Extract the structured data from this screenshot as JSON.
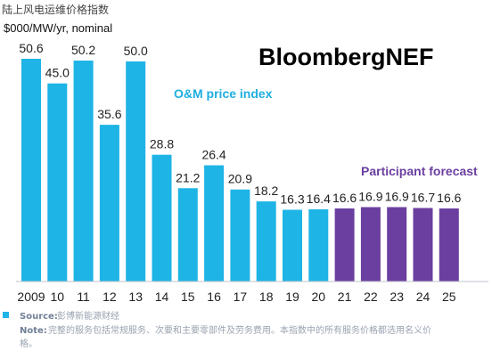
{
  "header": {
    "title": "陆上风电运维价格指数",
    "unit": "$000/MW/yr, nominal",
    "brand": "BloombergNEF"
  },
  "footer": {
    "source_label": "Source:",
    "source_text": "彭博新能源财经",
    "note_label": "Note:",
    "note_line1": "完整的服务包括常规服务、次要和主要零部件及劳务费用。本指数中的所有服务价格都选用名义价",
    "note_line2": "格。"
  },
  "colors": {
    "historical": "#1eb4e6",
    "forecast": "#6b3fa0",
    "historical_label": "#1eaee0",
    "forecast_label": "#6b3fa0"
  },
  "chart_data": {
    "type": "bar",
    "categories": [
      "2009",
      "10",
      "11",
      "12",
      "13",
      "14",
      "15",
      "16",
      "17",
      "18",
      "19",
      "20",
      "21",
      "22",
      "23",
      "24",
      "25"
    ],
    "series": [
      {
        "name": "O&M price index",
        "x": [
          "2009",
          "10",
          "11",
          "12",
          "13",
          "14",
          "15",
          "16",
          "17",
          "18",
          "19",
          "20"
        ],
        "values": [
          50.6,
          45.0,
          50.2,
          35.6,
          50.0,
          28.8,
          21.2,
          26.4,
          20.9,
          18.2,
          16.3,
          16.4
        ],
        "value_labels": [
          "50.6",
          "45.0",
          "50.2",
          "35.6",
          "50.0",
          "28.8",
          "21.2",
          "26.4",
          "20.9",
          "18.2",
          "16.3",
          "16.4"
        ]
      },
      {
        "name": "Participant forecast",
        "x": [
          "21",
          "22",
          "23",
          "24",
          "25"
        ],
        "values": [
          16.6,
          16.9,
          16.9,
          16.7,
          16.6
        ],
        "value_labels": [
          "16.6",
          "16.9",
          "16.9",
          "16.7",
          "16.6"
        ]
      }
    ],
    "ylim": [
      0,
      55
    ],
    "grid": false,
    "legend": "inline"
  }
}
